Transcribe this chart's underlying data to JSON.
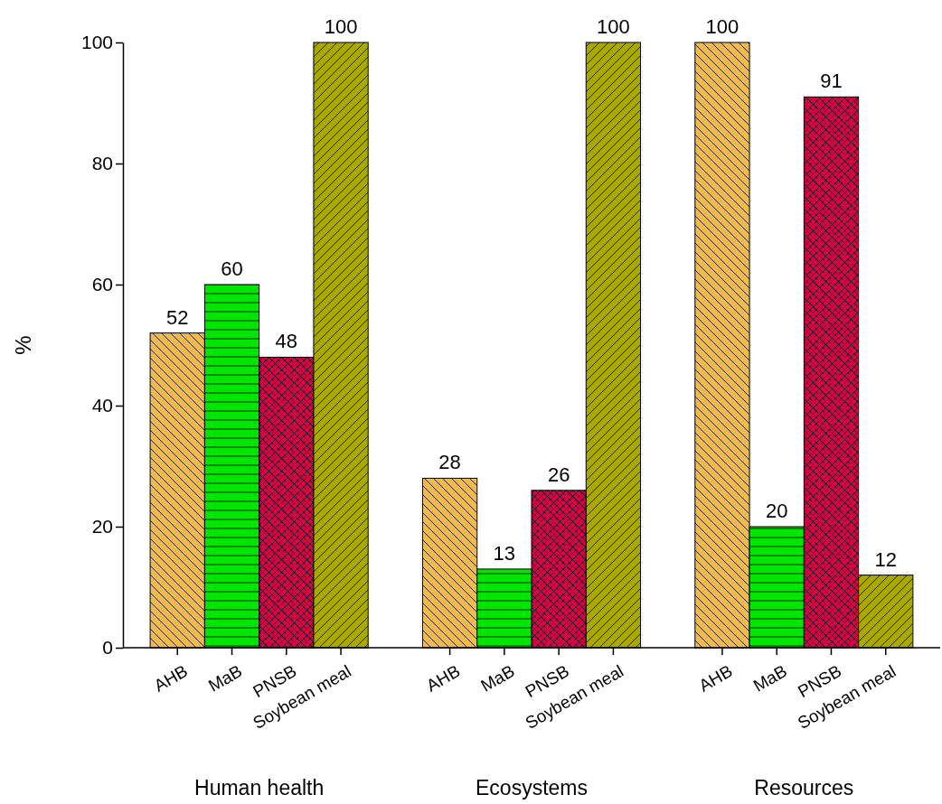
{
  "chart_data": {
    "type": "bar",
    "ylabel": "%",
    "categories": [
      "Human health",
      "Ecosystems",
      "Resources"
    ],
    "ylim": [
      0,
      100
    ],
    "yticks": [
      0,
      20,
      40,
      60,
      80,
      100
    ],
    "data_labels": true,
    "grid": false,
    "legend": "bottom",
    "series": [
      {
        "name": "AHB",
        "color": "#f0b94a",
        "values": [
          52,
          28,
          100
        ]
      },
      {
        "name": "MaB",
        "color": "#00e600",
        "values": [
          60,
          13,
          20
        ]
      },
      {
        "name": "PNSB",
        "color": "#d6004c",
        "values": [
          48,
          26,
          91
        ]
      },
      {
        "name": "Soybean meal",
        "color": "#a9a800",
        "values": [
          100,
          100,
          12
        ]
      }
    ]
  }
}
